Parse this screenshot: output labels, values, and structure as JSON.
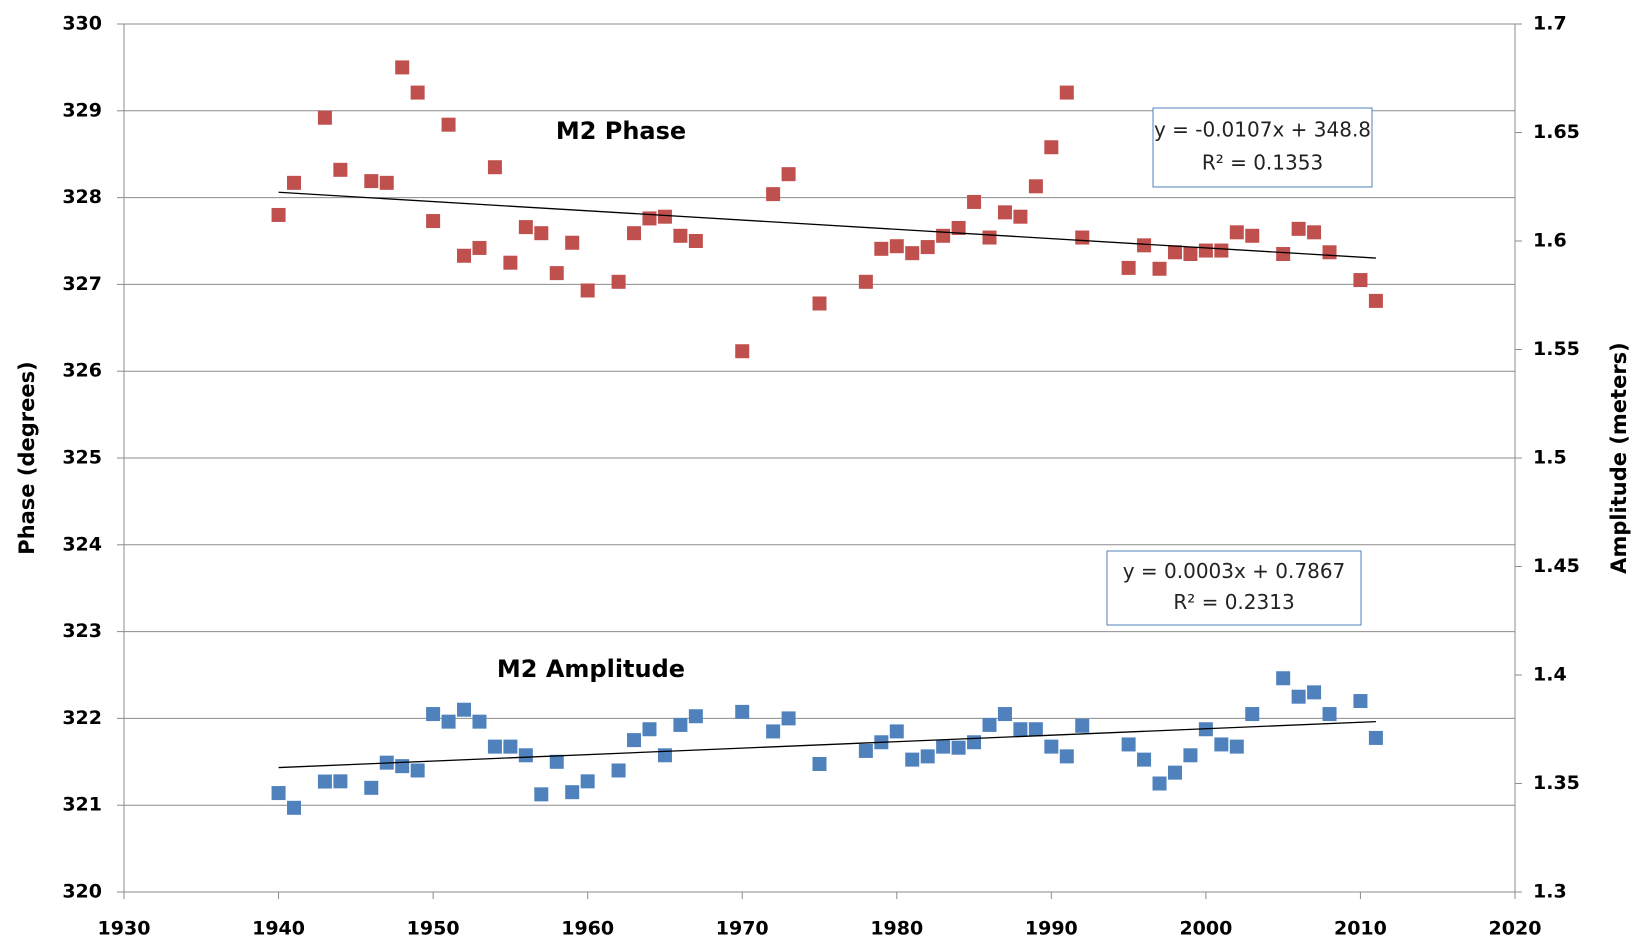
{
  "chart_data": {
    "type": "scatter",
    "x": [
      1940,
      1941,
      1943,
      1944,
      1946,
      1947,
      1948,
      1949,
      1950,
      1951,
      1952,
      1953,
      1954,
      1955,
      1956,
      1957,
      1958,
      1959,
      1960,
      1962,
      1963,
      1964,
      1965,
      1966,
      1967,
      1970,
      1972,
      1973,
      1975,
      1978,
      1979,
      1980,
      1981,
      1982,
      1983,
      1984,
      1985,
      1986,
      1987,
      1988,
      1989,
      1990,
      1991,
      1992,
      1995,
      1996,
      1997,
      1998,
      1999,
      2000,
      2001,
      2002,
      2003,
      2005,
      2006,
      2007,
      2008,
      2010,
      2011
    ],
    "series": [
      {
        "name": "M2 Phase",
        "color": "#c0504d",
        "axis": "y",
        "values": [
          327.8,
          328.17,
          328.92,
          328.32,
          328.19,
          328.17,
          329.5,
          329.21,
          327.73,
          328.84,
          327.33,
          327.42,
          328.35,
          327.25,
          327.66,
          327.59,
          327.13,
          327.48,
          326.93,
          327.03,
          327.59,
          327.76,
          327.78,
          327.56,
          327.5,
          326.23,
          328.04,
          328.27,
          326.78,
          327.03,
          327.41,
          327.44,
          327.36,
          327.43,
          327.56,
          327.65,
          327.95,
          327.54,
          327.83,
          327.78,
          328.13,
          328.58,
          329.21,
          327.54,
          327.19,
          327.45,
          327.18,
          327.37,
          327.35,
          327.39,
          327.39,
          327.6,
          327.56,
          327.35,
          327.64,
          327.6,
          327.37,
          327.05,
          326.81
        ],
        "trendline_label": [
          "y = -0.0107x + 348.8",
          "R² = 0.1353"
        ]
      },
      {
        "name": "M2 Amplitude",
        "color": "#4f81bd",
        "axis": "y2",
        "values": [
          1.3456,
          1.3388,
          1.3509,
          1.351,
          1.348,
          1.3596,
          1.358,
          1.356,
          1.382,
          1.3785,
          1.384,
          1.3785,
          1.367,
          1.367,
          1.363,
          1.345,
          1.36,
          1.346,
          1.351,
          1.356,
          1.37,
          1.375,
          1.363,
          1.377,
          1.381,
          1.383,
          1.374,
          1.38,
          1.359,
          1.365,
          1.369,
          1.374,
          1.361,
          1.3625,
          1.367,
          1.3665,
          1.369,
          1.377,
          1.382,
          1.375,
          1.375,
          1.367,
          1.3625,
          1.3766,
          1.368,
          1.361,
          1.35,
          1.355,
          1.363,
          1.375,
          1.368,
          1.367,
          1.382,
          1.3985,
          1.39,
          1.392,
          1.382,
          1.388,
          1.371
        ],
        "trendline_label": [
          "y = 0.0003x + 0.7867",
          "R² = 0.2313"
        ]
      }
    ],
    "y_label": "Phase (degrees)",
    "y2_label": "Amplitude (meters)",
    "xlim": [
      1930,
      2020
    ],
    "xticks": [
      1930,
      1940,
      1950,
      1960,
      1970,
      1980,
      1990,
      2000,
      2010,
      2020
    ],
    "ylim": [
      320,
      330
    ],
    "yticks": [
      320,
      321,
      322,
      323,
      324,
      325,
      326,
      327,
      328,
      329,
      330
    ],
    "y2lim": [
      1.3,
      1.7
    ],
    "y2ticks": [
      1.3,
      1.35,
      1.4,
      1.45,
      1.5,
      1.55,
      1.6,
      1.65,
      1.7
    ],
    "grid": true,
    "trendlines": true
  }
}
